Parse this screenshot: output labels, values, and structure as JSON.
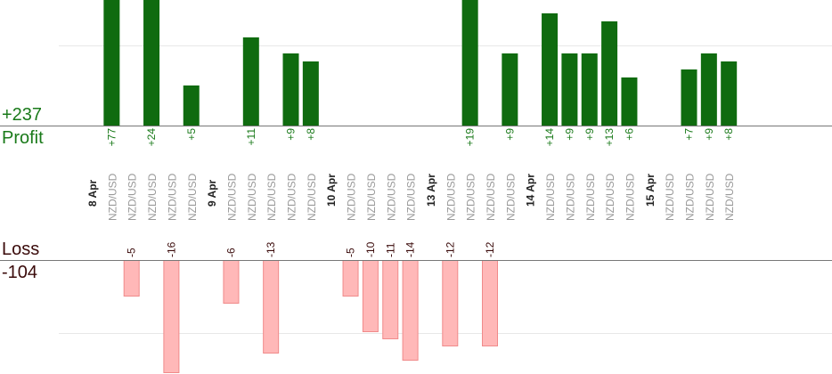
{
  "summary": {
    "profit_total": "+237",
    "profit_label": "Profit",
    "loss_label": "Loss",
    "loss_total": "-104"
  },
  "colors": {
    "profit_bar": "#0f6b0f",
    "profit_text": "#1a7a1a",
    "loss_bar": "#ffb8b8",
    "loss_bar_stroke": "#f08a8a",
    "loss_text": "#3a0a0a",
    "pair_text": "#999999",
    "date_text": "#222222"
  },
  "chart_data": {
    "type": "bar",
    "subtype": "diverging-profit-loss",
    "profit_ylim": [
      0,
      16
    ],
    "loss_ylim": [
      0,
      16
    ],
    "profit_gridlines": [
      10
    ],
    "loss_gridlines": [
      10
    ],
    "days": [
      {
        "label": "8 Apr",
        "trades": [
          {
            "pair": "NZD/USD",
            "profit": 77,
            "profit_label": "+77"
          },
          {
            "pair": "NZD/USD",
            "loss": 5,
            "loss_label": "-5"
          },
          {
            "pair": "NZD/USD",
            "profit": 24,
            "profit_label": "+24"
          },
          {
            "pair": "NZD/USD",
            "loss": 16,
            "loss_label": "-16"
          },
          {
            "pair": "NZD/USD",
            "profit": 5,
            "profit_label": "+5"
          }
        ]
      },
      {
        "label": "9 Apr",
        "trades": [
          {
            "pair": "NZD/USD",
            "loss": 6,
            "loss_label": "-6"
          },
          {
            "pair": "NZD/USD",
            "profit": 11,
            "profit_label": "+11"
          },
          {
            "pair": "NZD/USD",
            "loss": 13,
            "loss_label": "-13"
          },
          {
            "pair": "NZD/USD",
            "profit": 9,
            "profit_label": "+9"
          },
          {
            "pair": "NZD/USD",
            "profit": 8,
            "profit_label": "+8"
          }
        ]
      },
      {
        "label": "10 Apr",
        "trades": [
          {
            "pair": "NZD/USD",
            "loss": 5,
            "loss_label": "-5"
          },
          {
            "pair": "NZD/USD",
            "loss": 10,
            "loss_label": "-10"
          },
          {
            "pair": "NZD/USD",
            "loss": 11,
            "loss_label": "-11"
          },
          {
            "pair": "NZD/USD",
            "loss": 14,
            "loss_label": "-14"
          }
        ]
      },
      {
        "label": "13 Apr",
        "trades": [
          {
            "pair": "NZD/USD",
            "loss": 12,
            "loss_label": "-12"
          },
          {
            "pair": "NZD/USD",
            "profit": 19,
            "profit_label": "+19"
          },
          {
            "pair": "NZD/USD",
            "loss": 12,
            "loss_label": "-12"
          },
          {
            "pair": "NZD/USD",
            "profit": 9,
            "profit_label": "+9"
          }
        ]
      },
      {
        "label": "14 Apr",
        "trades": [
          {
            "pair": "NZD/USD",
            "profit": 14,
            "profit_label": "+14"
          },
          {
            "pair": "NZD/USD",
            "profit": 9,
            "profit_label": "+9"
          },
          {
            "pair": "NZD/USD",
            "profit": 9,
            "profit_label": "+9"
          },
          {
            "pair": "NZD/USD",
            "profit": 13,
            "profit_label": "+13"
          },
          {
            "pair": "NZD/USD",
            "profit": 6,
            "profit_label": "+6"
          }
        ]
      },
      {
        "label": "15 Apr",
        "trades": [
          {
            "pair": "NZD/USD"
          },
          {
            "pair": "NZD/USD",
            "profit": 7,
            "profit_label": "+7"
          },
          {
            "pair": "NZD/USD",
            "profit": 9,
            "profit_label": "+9"
          },
          {
            "pair": "NZD/USD",
            "profit": 8,
            "profit_label": "+8"
          }
        ]
      }
    ]
  }
}
